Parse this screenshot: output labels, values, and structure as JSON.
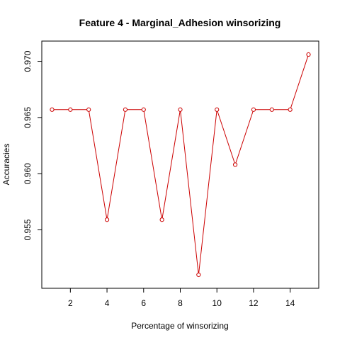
{
  "chart_data": {
    "type": "line",
    "title": "Feature 4 - Marginal_Adhesion winsorizing",
    "xlabel": "Percentage of winsorizing",
    "ylabel": "Accuracies",
    "x": [
      1,
      2,
      3,
      4,
      5,
      6,
      7,
      8,
      9,
      10,
      11,
      12,
      13,
      14,
      15
    ],
    "series": [
      {
        "values": [
          0.9657,
          0.9657,
          0.9657,
          0.9559,
          0.9657,
          0.9657,
          0.9559,
          0.9657,
          0.951,
          0.9657,
          0.9608,
          0.9657,
          0.9657,
          0.9657,
          0.9706
        ],
        "color": "#cc0000"
      }
    ],
    "xlim": [
      0.44,
      15.56
    ],
    "ylim": [
      0.9498,
      0.9718
    ],
    "xticks": [
      2,
      4,
      6,
      8,
      10,
      12,
      14
    ],
    "yticks": [
      0.955,
      0.96,
      0.965,
      0.97
    ],
    "ytick_labels": [
      "0.955",
      "0.960",
      "0.965",
      "0.970"
    ],
    "grid": false,
    "legend": "none",
    "marker": "open-circle"
  }
}
